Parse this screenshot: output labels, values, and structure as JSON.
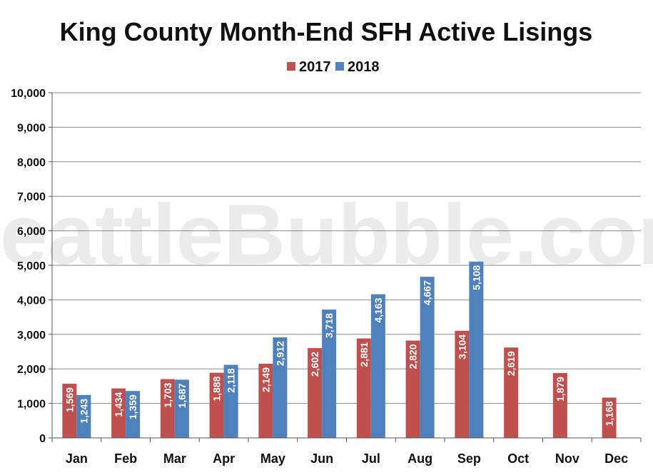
{
  "chart_data": {
    "type": "bar",
    "title": "King County Month-End SFH Active Lisings",
    "watermark": "SeattleBubble.com",
    "categories": [
      "Jan",
      "Feb",
      "Mar",
      "Apr",
      "May",
      "Jun",
      "Jul",
      "Aug",
      "Sep",
      "Oct",
      "Nov",
      "Dec"
    ],
    "series": [
      {
        "name": "2017",
        "color": "#c0504d",
        "values": [
          1569,
          1434,
          1703,
          1888,
          2149,
          2602,
          2881,
          2820,
          3104,
          2619,
          1879,
          1168
        ],
        "labels": [
          "1,569",
          "1,434",
          "1,703",
          "1,888",
          "2,149",
          "2,602",
          "2,881",
          "2,820",
          "3,104",
          "2,619",
          "1,879",
          "1,168"
        ]
      },
      {
        "name": "2018",
        "color": "#4f81bd",
        "values": [
          1243,
          1359,
          1687,
          2118,
          2912,
          3718,
          4163,
          4667,
          5108,
          null,
          null,
          null
        ],
        "labels": [
          "1,243",
          "1,359",
          "1,687",
          "2,118",
          "2,912",
          "3,718",
          "4,163",
          "4,667",
          "5,108",
          "",
          "",
          ""
        ]
      }
    ],
    "ylim": [
      0,
      10000
    ],
    "yticks": [
      0,
      1000,
      2000,
      3000,
      4000,
      5000,
      6000,
      7000,
      8000,
      9000,
      10000
    ],
    "ytick_labels": [
      "0",
      "1,000",
      "2,000",
      "3,000",
      "4,000",
      "5,000",
      "6,000",
      "7,000",
      "8,000",
      "9,000",
      "10,000"
    ],
    "grid": true,
    "legend_position": "top-center",
    "xlabel": "",
    "ylabel": ""
  }
}
